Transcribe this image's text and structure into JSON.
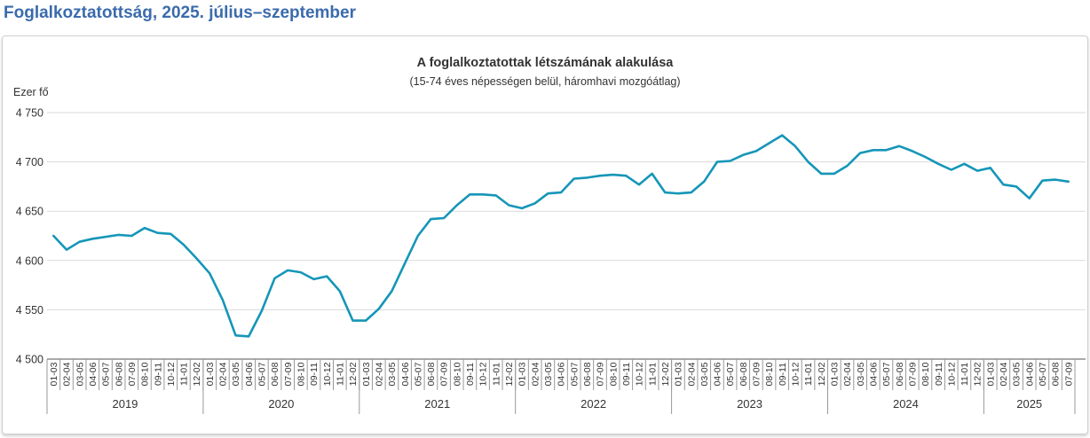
{
  "page_title": "Foglalkoztatottság, 2025. július–szeptember",
  "chart": {
    "title": "A foglalkoztatottak létszámának alakulása",
    "subtitle": "(15-74 éves népességen belül, háromhavi mozgóátlag)",
    "y_axis_unit": "Ezer fő"
  },
  "colors": {
    "page_title_blue": "#3a6bac",
    "line_teal": "#1596b8",
    "grid_gray": "#d9d9d9",
    "axis_dark": "#555555",
    "tick_gray": "#999999",
    "text_dark": "#333333",
    "card_border": "#cfcfcf"
  },
  "chart_data": {
    "type": "line",
    "title": "A foglalkoztatottak létszámának alakulása",
    "subtitle": "(15-74 éves népességen belül, háromhavi mozgóátlag)",
    "ylabel": "Ezer fő",
    "ylim": [
      4500,
      4750
    ],
    "ytick_step": 50,
    "yticks": [
      4500,
      4550,
      4600,
      4650,
      4700,
      4750
    ],
    "ytick_labels": [
      "4 500",
      "4 550",
      "4 600",
      "4 650",
      "4 700",
      "4 750"
    ],
    "grid": true,
    "legend": "none",
    "month_labels": [
      "01-03",
      "02-04",
      "03-05",
      "04-06",
      "05-07",
      "06-08",
      "07-09",
      "08-10",
      "09-11",
      "10-12",
      "11-01",
      "12-02"
    ],
    "series": [
      {
        "year": "2019",
        "values": [
          4625,
          4611,
          4619,
          4622,
          4624,
          4626,
          4625,
          4633,
          4628,
          4627,
          4616,
          4602
        ]
      },
      {
        "year": "2020",
        "values": [
          4587,
          4560,
          4524,
          4523,
          4549,
          4582,
          4590,
          4588,
          4581,
          4584,
          4569,
          4539
        ]
      },
      {
        "year": "2021",
        "values": [
          4539,
          4551,
          4569,
          4597,
          4625,
          4642,
          4643,
          4656,
          4667,
          4667,
          4666,
          4656
        ]
      },
      {
        "year": "2022",
        "values": [
          4653,
          4658,
          4668,
          4669,
          4683,
          4684,
          4686,
          4687,
          4686,
          4677,
          4688,
          4669
        ]
      },
      {
        "year": "2023",
        "values": [
          4668,
          4669,
          4680,
          4700,
          4701,
          4707,
          4711,
          4719,
          4727,
          4716,
          4700,
          4688
        ]
      },
      {
        "year": "2024",
        "values": [
          4688,
          4696,
          4709,
          4712,
          4712,
          4716,
          4711,
          4705,
          4698,
          4692,
          4698,
          4691
        ]
      },
      {
        "year": "2025",
        "values": [
          4694,
          4677,
          4675,
          4663,
          4681,
          4682,
          4680
        ]
      }
    ]
  }
}
